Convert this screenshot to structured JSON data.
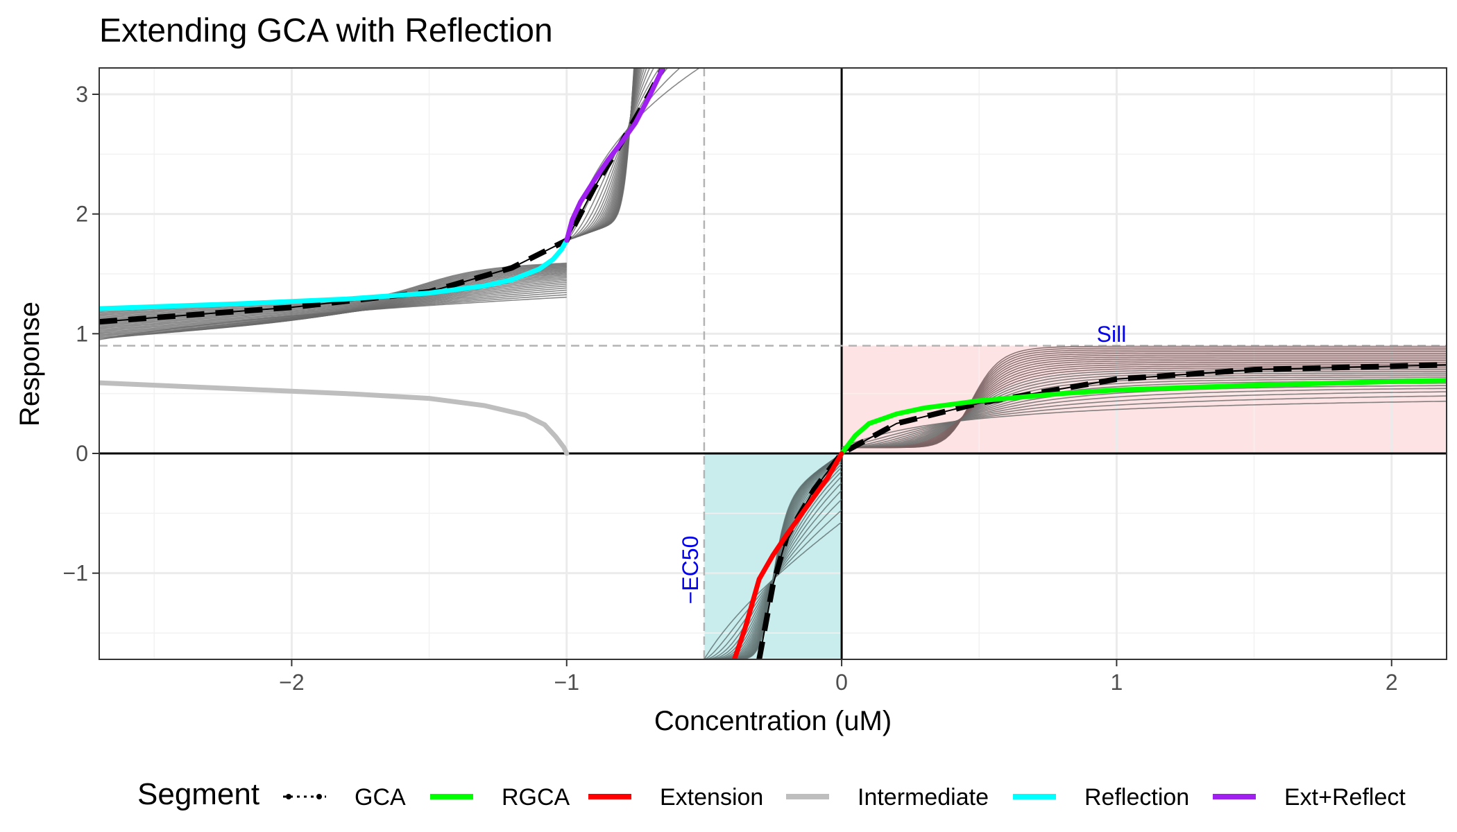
{
  "chart_data": {
    "type": "line",
    "title": "Extending GCA with Reflection",
    "xlabel": "Concentration (uM)",
    "ylabel": "Response",
    "xlim": [
      -2.7,
      2.2
    ],
    "ylim": [
      -1.72,
      3.22
    ],
    "xticks": [
      -2,
      -1,
      0,
      1,
      2
    ],
    "xtick_labels": [
      "−2",
      "−1",
      "0",
      "1",
      "2"
    ],
    "yticks": [
      -1,
      0,
      1,
      2,
      3
    ],
    "ytick_labels": [
      "−1",
      "0",
      "1",
      "2",
      "3"
    ],
    "grid": true,
    "legend_position": "bottom",
    "legend_title": "Segment",
    "annotations": {
      "sill": {
        "label": "Sill",
        "y": 0.9
      },
      "ec50": {
        "label": "−EC50",
        "x": -0.5
      }
    },
    "shaded_regions": [
      {
        "x": [
          0,
          2.2
        ],
        "y": [
          0,
          0.9
        ],
        "color": "#fde3e3"
      },
      {
        "x": [
          -0.5,
          0
        ],
        "y": [
          -1.72,
          0
        ],
        "color": "#c9eded"
      }
    ],
    "series": [
      {
        "name": "GCA",
        "style": "black dashed",
        "x": [
          -2.7,
          -2.0,
          -1.5,
          -1.2,
          -1.0,
          -0.9,
          -0.8,
          -0.7,
          -0.65,
          -0.6,
          -0.5,
          -0.4,
          -0.3,
          -0.25,
          -0.2,
          -0.1,
          0,
          0.2,
          0.5,
          1.0,
          1.5,
          2.2
        ],
        "y": [
          1.1,
          1.22,
          1.35,
          1.55,
          1.78,
          2.22,
          2.6,
          3.0,
          3.22,
          null,
          null,
          null,
          -1.72,
          -1.1,
          -0.7,
          -0.3,
          0,
          0.25,
          0.42,
          0.62,
          0.7,
          0.74
        ]
      },
      {
        "name": "RGCA",
        "color": "#00ff00",
        "x": [
          0,
          0.05,
          0.1,
          0.2,
          0.3,
          0.5,
          0.8,
          1.0,
          1.5,
          2.0,
          2.2
        ],
        "y": [
          0,
          0.15,
          0.25,
          0.33,
          0.38,
          0.44,
          0.5,
          0.53,
          0.57,
          0.6,
          0.61
        ]
      },
      {
        "name": "Extension",
        "color": "#ff0000",
        "x": [
          -0.39,
          -0.35,
          -0.3,
          -0.25,
          -0.2,
          -0.15,
          -0.1,
          -0.05,
          0
        ],
        "y": [
          -1.72,
          -1.45,
          -1.05,
          -0.85,
          -0.68,
          -0.52,
          -0.36,
          -0.2,
          0
        ]
      },
      {
        "name": "Intermediate",
        "color": "#bebebe",
        "x": [
          -2.7,
          -2.2,
          -1.8,
          -1.5,
          -1.3,
          -1.15,
          -1.08,
          -1.04,
          -1.01,
          -1.0
        ],
        "y": [
          0.59,
          0.54,
          0.5,
          0.46,
          0.4,
          0.32,
          0.24,
          0.14,
          0.05,
          0
        ]
      },
      {
        "name": "Reflection",
        "color": "#00ffff",
        "x": [
          -2.7,
          -2.2,
          -1.8,
          -1.5,
          -1.3,
          -1.2,
          -1.1,
          -1.05,
          -1.02,
          -1.0
        ],
        "y": [
          1.21,
          1.25,
          1.29,
          1.34,
          1.4,
          1.45,
          1.54,
          1.62,
          1.7,
          1.78
        ]
      },
      {
        "name": "Ext+Reflect",
        "color": "#a020f0",
        "x": [
          -1.0,
          -0.98,
          -0.95,
          -0.9,
          -0.85,
          -0.8,
          -0.75,
          -0.7,
          -0.65
        ],
        "y": [
          1.78,
          1.95,
          2.1,
          2.28,
          2.45,
          2.6,
          2.76,
          2.98,
          3.22
        ]
      }
    ]
  }
}
